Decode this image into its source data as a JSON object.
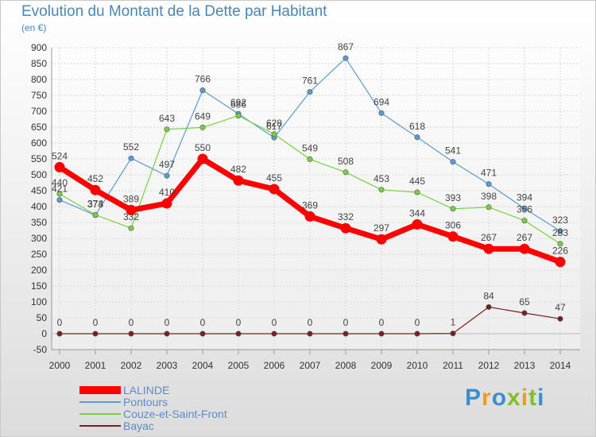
{
  "page": {
    "title": "Evolution du Montant de la Dette par Habitant",
    "subtitle": "(en €)",
    "brand": "Proxiti"
  },
  "chart_data": {
    "type": "line",
    "title": "Evolution du Montant de la Dette par Habitant",
    "subtitle": "(en €)",
    "xlabel": "",
    "ylabel": "",
    "ylim": [
      -50,
      900
    ],
    "yticks": [
      -50,
      0,
      50,
      100,
      150,
      200,
      250,
      300,
      350,
      400,
      450,
      500,
      550,
      600,
      650,
      700,
      750,
      800,
      850,
      900
    ],
    "categories": [
      "2000",
      "2001",
      "2002",
      "2003",
      "2004",
      "2005",
      "2006",
      "2007",
      "2008",
      "2009",
      "2010",
      "2011",
      "2012",
      "2013",
      "2014"
    ],
    "grid": true,
    "legend_position": "bottom-left",
    "series": [
      {
        "name": "LALINDE",
        "color": "#ff0000",
        "values": [
          524,
          452,
          389,
          410,
          550,
          482,
          455,
          369,
          332,
          297,
          344,
          306,
          267,
          267,
          226
        ]
      },
      {
        "name": "Pontours",
        "color": "#5b9bd5",
        "values": [
          421,
          373,
          552,
          497,
          766,
          692,
          617,
          761,
          867,
          694,
          618,
          541,
          471,
          394,
          323
        ]
      },
      {
        "name": "Couze-et-Saint-Front",
        "color": "#77d13f",
        "values": [
          440,
          374,
          332,
          643,
          649,
          686,
          628,
          549,
          508,
          453,
          445,
          393,
          398,
          356,
          283
        ]
      },
      {
        "name": "Bayac",
        "color": "#7a1e1e",
        "values": [
          0,
          0,
          0,
          0,
          0,
          0,
          0,
          0,
          0,
          0,
          0,
          1,
          84,
          65,
          47
        ]
      }
    ]
  }
}
